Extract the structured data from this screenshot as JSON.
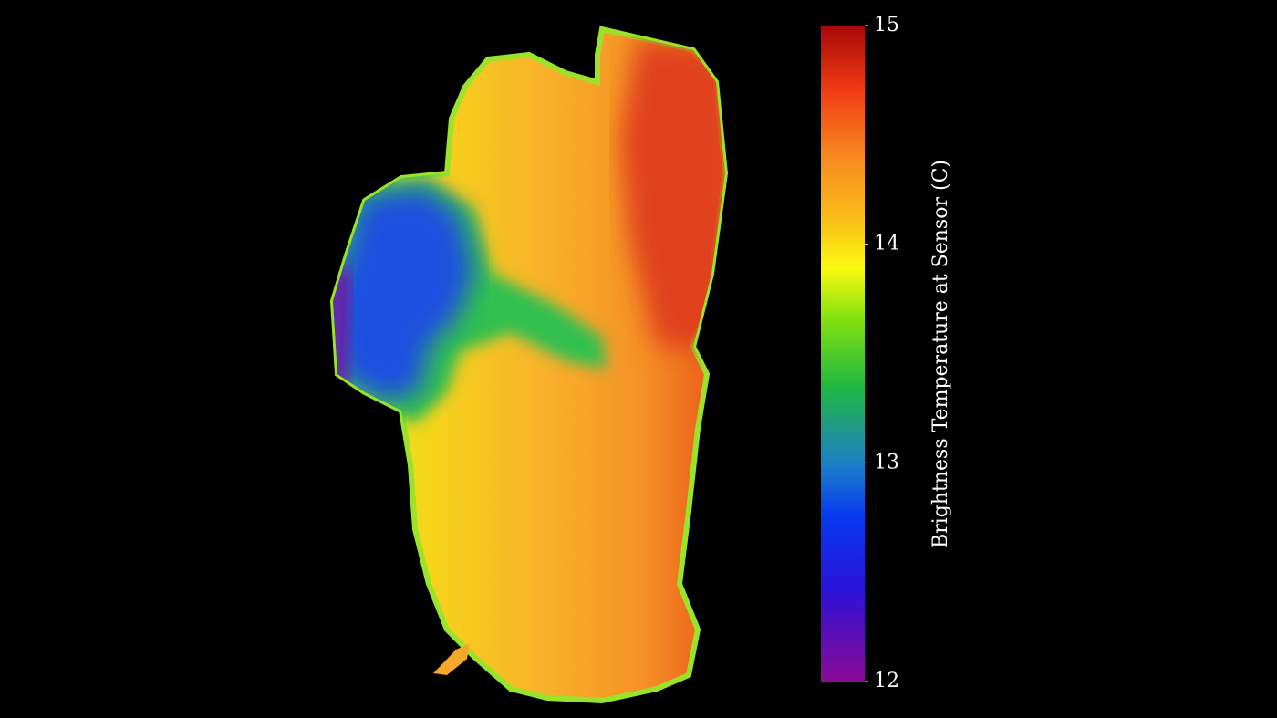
{
  "colorbar": {
    "label": "Brightness Temperature at Sensor (C)",
    "lim": [
      12,
      15
    ],
    "ticks": [
      12,
      13,
      14,
      15
    ]
  }
}
